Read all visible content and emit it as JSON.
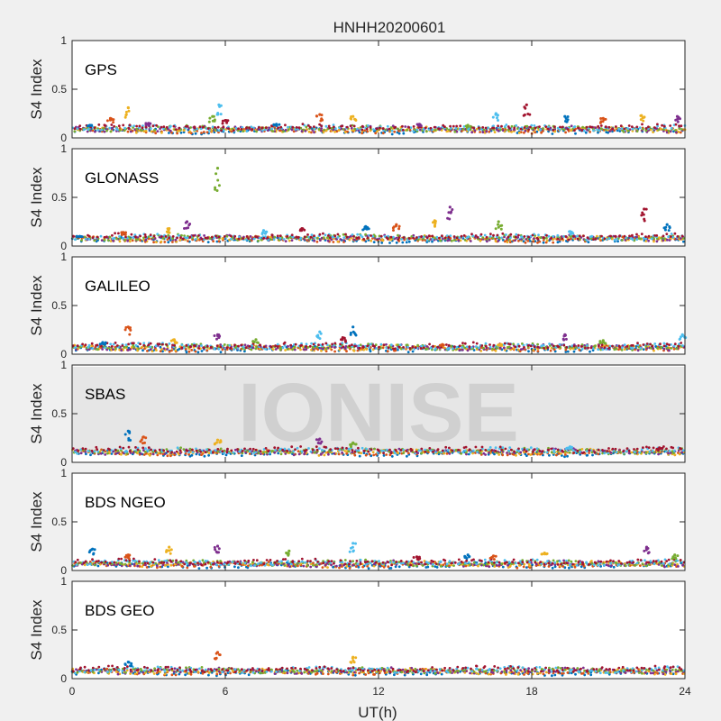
{
  "title": "HNHH20200601",
  "xlabel": "UT(h)",
  "ylabel": "S4 Index",
  "watermark": "IONISE",
  "colors": {
    "background": "#f0f0f0",
    "axes_face": "#ffffff",
    "axes_edge": "#262626",
    "watermark_band": "#e6e6e6",
    "watermark_text": "#d0d0d0",
    "series": [
      "#0072bd",
      "#d95319",
      "#edb120",
      "#7e2f8e",
      "#77ac30",
      "#4dbeee",
      "#a2142f"
    ]
  },
  "chart_data": [
    {
      "type": "scatter",
      "constellation": "GPS",
      "xlim": [
        0,
        24
      ],
      "ylim": [
        0,
        1
      ],
      "xticks": [
        0,
        6,
        12,
        18,
        24
      ],
      "yticks": [
        0,
        0.5,
        1
      ],
      "baseline": 0.09,
      "spikes": [
        [
          0.7,
          0.13
        ],
        [
          1.5,
          0.2
        ],
        [
          2.2,
          0.31
        ],
        [
          3.0,
          0.15
        ],
        [
          5.5,
          0.22
        ],
        [
          5.75,
          0.34
        ],
        [
          6.0,
          0.18
        ],
        [
          8.0,
          0.14
        ],
        [
          9.7,
          0.24
        ],
        [
          11.0,
          0.22
        ],
        [
          13.6,
          0.14
        ],
        [
          15.5,
          0.13
        ],
        [
          16.6,
          0.25
        ],
        [
          17.8,
          0.34
        ],
        [
          19.3,
          0.22
        ],
        [
          20.8,
          0.2
        ],
        [
          22.3,
          0.23
        ],
        [
          23.7,
          0.22
        ]
      ]
    },
    {
      "type": "scatter",
      "constellation": "GLONASS",
      "xlim": [
        0,
        24
      ],
      "ylim": [
        0,
        1
      ],
      "xticks": [
        0,
        6,
        12,
        18,
        24
      ],
      "yticks": [
        0,
        0.5,
        1
      ],
      "baseline": 0.08,
      "spikes": [
        [
          0.3,
          0.1
        ],
        [
          2.0,
          0.14
        ],
        [
          3.8,
          0.18
        ],
        [
          4.5,
          0.25
        ],
        [
          5.7,
          0.8
        ],
        [
          7.5,
          0.16
        ],
        [
          9.0,
          0.18
        ],
        [
          11.5,
          0.2
        ],
        [
          12.7,
          0.22
        ],
        [
          14.2,
          0.26
        ],
        [
          14.8,
          0.4
        ],
        [
          16.7,
          0.25
        ],
        [
          19.5,
          0.15
        ],
        [
          22.4,
          0.38
        ],
        [
          23.3,
          0.22
        ]
      ]
    },
    {
      "type": "scatter",
      "constellation": "GALILEO",
      "xlim": [
        0,
        24
      ],
      "ylim": [
        0,
        1
      ],
      "xticks": [
        0,
        6,
        12,
        18,
        24
      ],
      "yticks": [
        0,
        0.5,
        1
      ],
      "baseline": 0.07,
      "spikes": [
        [
          1.2,
          0.12
        ],
        [
          2.2,
          0.28
        ],
        [
          4.0,
          0.15
        ],
        [
          5.7,
          0.2
        ],
        [
          7.2,
          0.15
        ],
        [
          9.7,
          0.23
        ],
        [
          10.6,
          0.17
        ],
        [
          11.0,
          0.28
        ],
        [
          14.5,
          0.1
        ],
        [
          16.8,
          0.1
        ],
        [
          19.3,
          0.2
        ],
        [
          20.8,
          0.14
        ],
        [
          23.9,
          0.2
        ]
      ]
    },
    {
      "type": "scatter",
      "constellation": "SBAS",
      "xlim": [
        0,
        24
      ],
      "ylim": [
        0,
        1
      ],
      "xticks": [
        0,
        6,
        12,
        18,
        24
      ],
      "yticks": [
        0,
        0.5,
        1
      ],
      "baseline": 0.11,
      "spikes": [
        [
          2.2,
          0.32
        ],
        [
          2.8,
          0.26
        ],
        [
          5.7,
          0.23
        ],
        [
          9.7,
          0.24
        ],
        [
          11.0,
          0.2
        ],
        [
          19.5,
          0.16
        ],
        [
          23.0,
          0.15
        ]
      ]
    },
    {
      "type": "scatter",
      "constellation": "BDS NGEO",
      "xlim": [
        0,
        24
      ],
      "ylim": [
        0,
        1
      ],
      "xticks": [
        0,
        6,
        12,
        18,
        24
      ],
      "yticks": [
        0,
        0.5,
        1
      ],
      "baseline": 0.07,
      "spikes": [
        [
          0.8,
          0.22
        ],
        [
          2.2,
          0.16
        ],
        [
          3.8,
          0.24
        ],
        [
          5.7,
          0.25
        ],
        [
          8.5,
          0.2
        ],
        [
          11.0,
          0.28
        ],
        [
          13.5,
          0.14
        ],
        [
          15.5,
          0.16
        ],
        [
          16.5,
          0.15
        ],
        [
          18.5,
          0.18
        ],
        [
          22.5,
          0.24
        ],
        [
          23.6,
          0.16
        ]
      ]
    },
    {
      "type": "scatter",
      "constellation": "BDS GEO",
      "xlim": [
        0,
        24
      ],
      "ylim": [
        0,
        1
      ],
      "xticks": [
        0,
        6,
        12,
        18,
        24
      ],
      "yticks": [
        0,
        0.5,
        1
      ],
      "baseline": 0.08,
      "spikes": [
        [
          2.2,
          0.17
        ],
        [
          5.7,
          0.27
        ],
        [
          11.0,
          0.22
        ]
      ]
    }
  ]
}
